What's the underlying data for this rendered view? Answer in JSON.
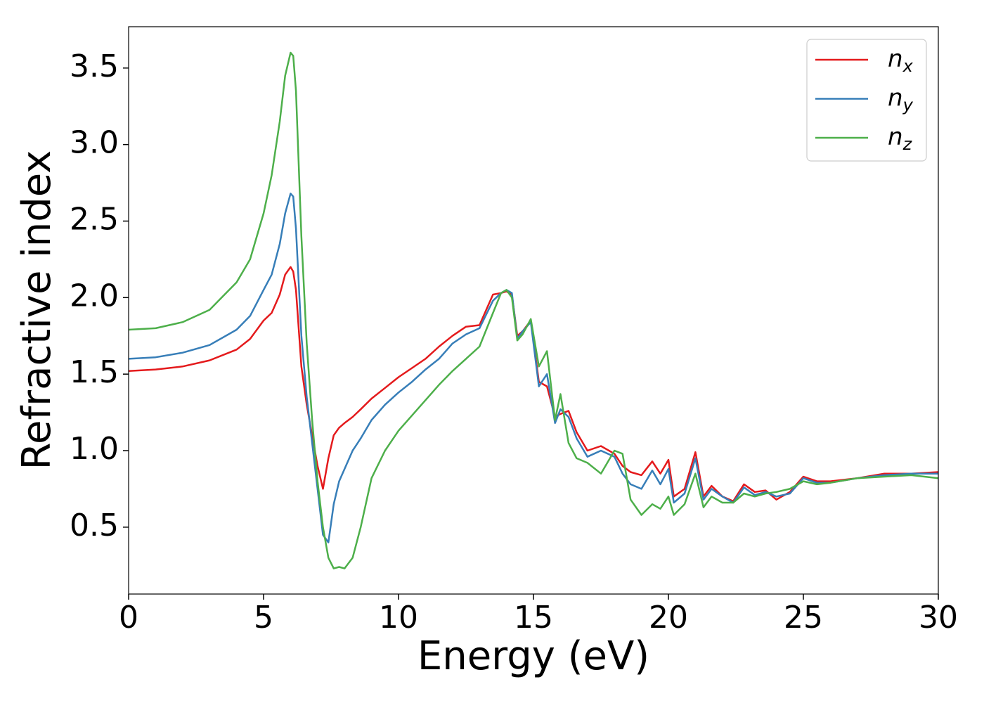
{
  "chart_data": {
    "type": "line",
    "x_label": "Energy (eV)",
    "y_label": "Refractive index",
    "x": [
      0,
      1,
      2,
      3,
      4,
      4.5,
      5,
      5.3,
      5.6,
      5.8,
      6,
      6.1,
      6.2,
      6.4,
      6.6,
      6.8,
      7,
      7.2,
      7.4,
      7.6,
      7.8,
      8,
      8.3,
      8.6,
      9,
      9.5,
      10,
      10.5,
      11,
      11.5,
      12,
      12.5,
      13,
      13.5,
      13.8,
      14,
      14.2,
      14.4,
      14.6,
      14.9,
      15.2,
      15.5,
      15.8,
      16,
      16.3,
      16.6,
      17,
      17.5,
      18,
      18.3,
      18.6,
      19,
      19.4,
      19.7,
      20,
      20.2,
      20.6,
      21,
      21.3,
      21.6,
      22,
      22.4,
      22.8,
      23.2,
      23.6,
      24,
      24.5,
      25,
      25.5,
      26,
      27,
      28,
      29,
      30
    ],
    "series": [
      {
        "name": "n_x",
        "color": "#e41a1c",
        "values": [
          1.52,
          1.53,
          1.55,
          1.59,
          1.66,
          1.73,
          1.85,
          1.9,
          2.02,
          2.15,
          2.2,
          2.17,
          2.05,
          1.55,
          1.3,
          1.1,
          0.9,
          0.75,
          0.95,
          1.1,
          1.15,
          1.18,
          1.22,
          1.27,
          1.34,
          1.41,
          1.48,
          1.54,
          1.6,
          1.68,
          1.75,
          1.81,
          1.82,
          2.02,
          2.03,
          2.04,
          2.02,
          1.75,
          1.78,
          1.85,
          1.45,
          1.42,
          1.22,
          1.24,
          1.26,
          1.12,
          1.0,
          1.03,
          0.98,
          0.9,
          0.86,
          0.84,
          0.93,
          0.85,
          0.94,
          0.7,
          0.75,
          0.99,
          0.7,
          0.77,
          0.7,
          0.67,
          0.78,
          0.73,
          0.74,
          0.68,
          0.73,
          0.83,
          0.8,
          0.8,
          0.82,
          0.85,
          0.85,
          0.86
        ]
      },
      {
        "name": "n_y",
        "color": "#377eb8",
        "values": [
          1.6,
          1.61,
          1.64,
          1.69,
          1.79,
          1.88,
          2.05,
          2.15,
          2.35,
          2.55,
          2.68,
          2.66,
          2.45,
          1.75,
          1.35,
          1.05,
          0.75,
          0.45,
          0.4,
          0.65,
          0.8,
          0.88,
          1.0,
          1.08,
          1.2,
          1.3,
          1.38,
          1.45,
          1.53,
          1.6,
          1.7,
          1.76,
          1.8,
          1.98,
          2.03,
          2.05,
          2.03,
          1.73,
          1.78,
          1.84,
          1.42,
          1.5,
          1.18,
          1.27,
          1.22,
          1.08,
          0.96,
          1.0,
          0.96,
          0.85,
          0.78,
          0.75,
          0.87,
          0.78,
          0.88,
          0.66,
          0.72,
          0.95,
          0.68,
          0.75,
          0.7,
          0.66,
          0.76,
          0.71,
          0.73,
          0.7,
          0.72,
          0.82,
          0.79,
          0.79,
          0.82,
          0.84,
          0.85,
          0.85
        ]
      },
      {
        "name": "n_z",
        "color": "#4daf4a",
        "values": [
          1.79,
          1.8,
          1.84,
          1.92,
          2.1,
          2.25,
          2.55,
          2.8,
          3.15,
          3.45,
          3.6,
          3.58,
          3.35,
          2.4,
          1.7,
          1.2,
          0.8,
          0.5,
          0.3,
          0.23,
          0.24,
          0.23,
          0.3,
          0.5,
          0.82,
          1.0,
          1.13,
          1.23,
          1.33,
          1.43,
          1.52,
          1.6,
          1.68,
          1.9,
          2.03,
          2.05,
          2.0,
          1.72,
          1.76,
          1.86,
          1.55,
          1.65,
          1.2,
          1.37,
          1.05,
          0.95,
          0.92,
          0.85,
          1.0,
          0.98,
          0.68,
          0.58,
          0.65,
          0.62,
          0.7,
          0.58,
          0.65,
          0.85,
          0.63,
          0.7,
          0.66,
          0.66,
          0.72,
          0.7,
          0.72,
          0.73,
          0.75,
          0.8,
          0.78,
          0.79,
          0.82,
          0.83,
          0.84,
          0.82
        ]
      }
    ],
    "xlim": [
      0,
      30
    ],
    "xticks": [
      0,
      5,
      10,
      15,
      20,
      25,
      30
    ],
    "ylim": [
      0.063,
      3.77
    ],
    "yticks": [
      0.5,
      {
        "value": 1,
        "label": "1.0"
      },
      1.5,
      {
        "value": 2,
        "label": "2.0"
      },
      2.5,
      {
        "value": 3,
        "label": "3.0"
      },
      3.5
    ],
    "legend": "upper right",
    "grid": false
  }
}
